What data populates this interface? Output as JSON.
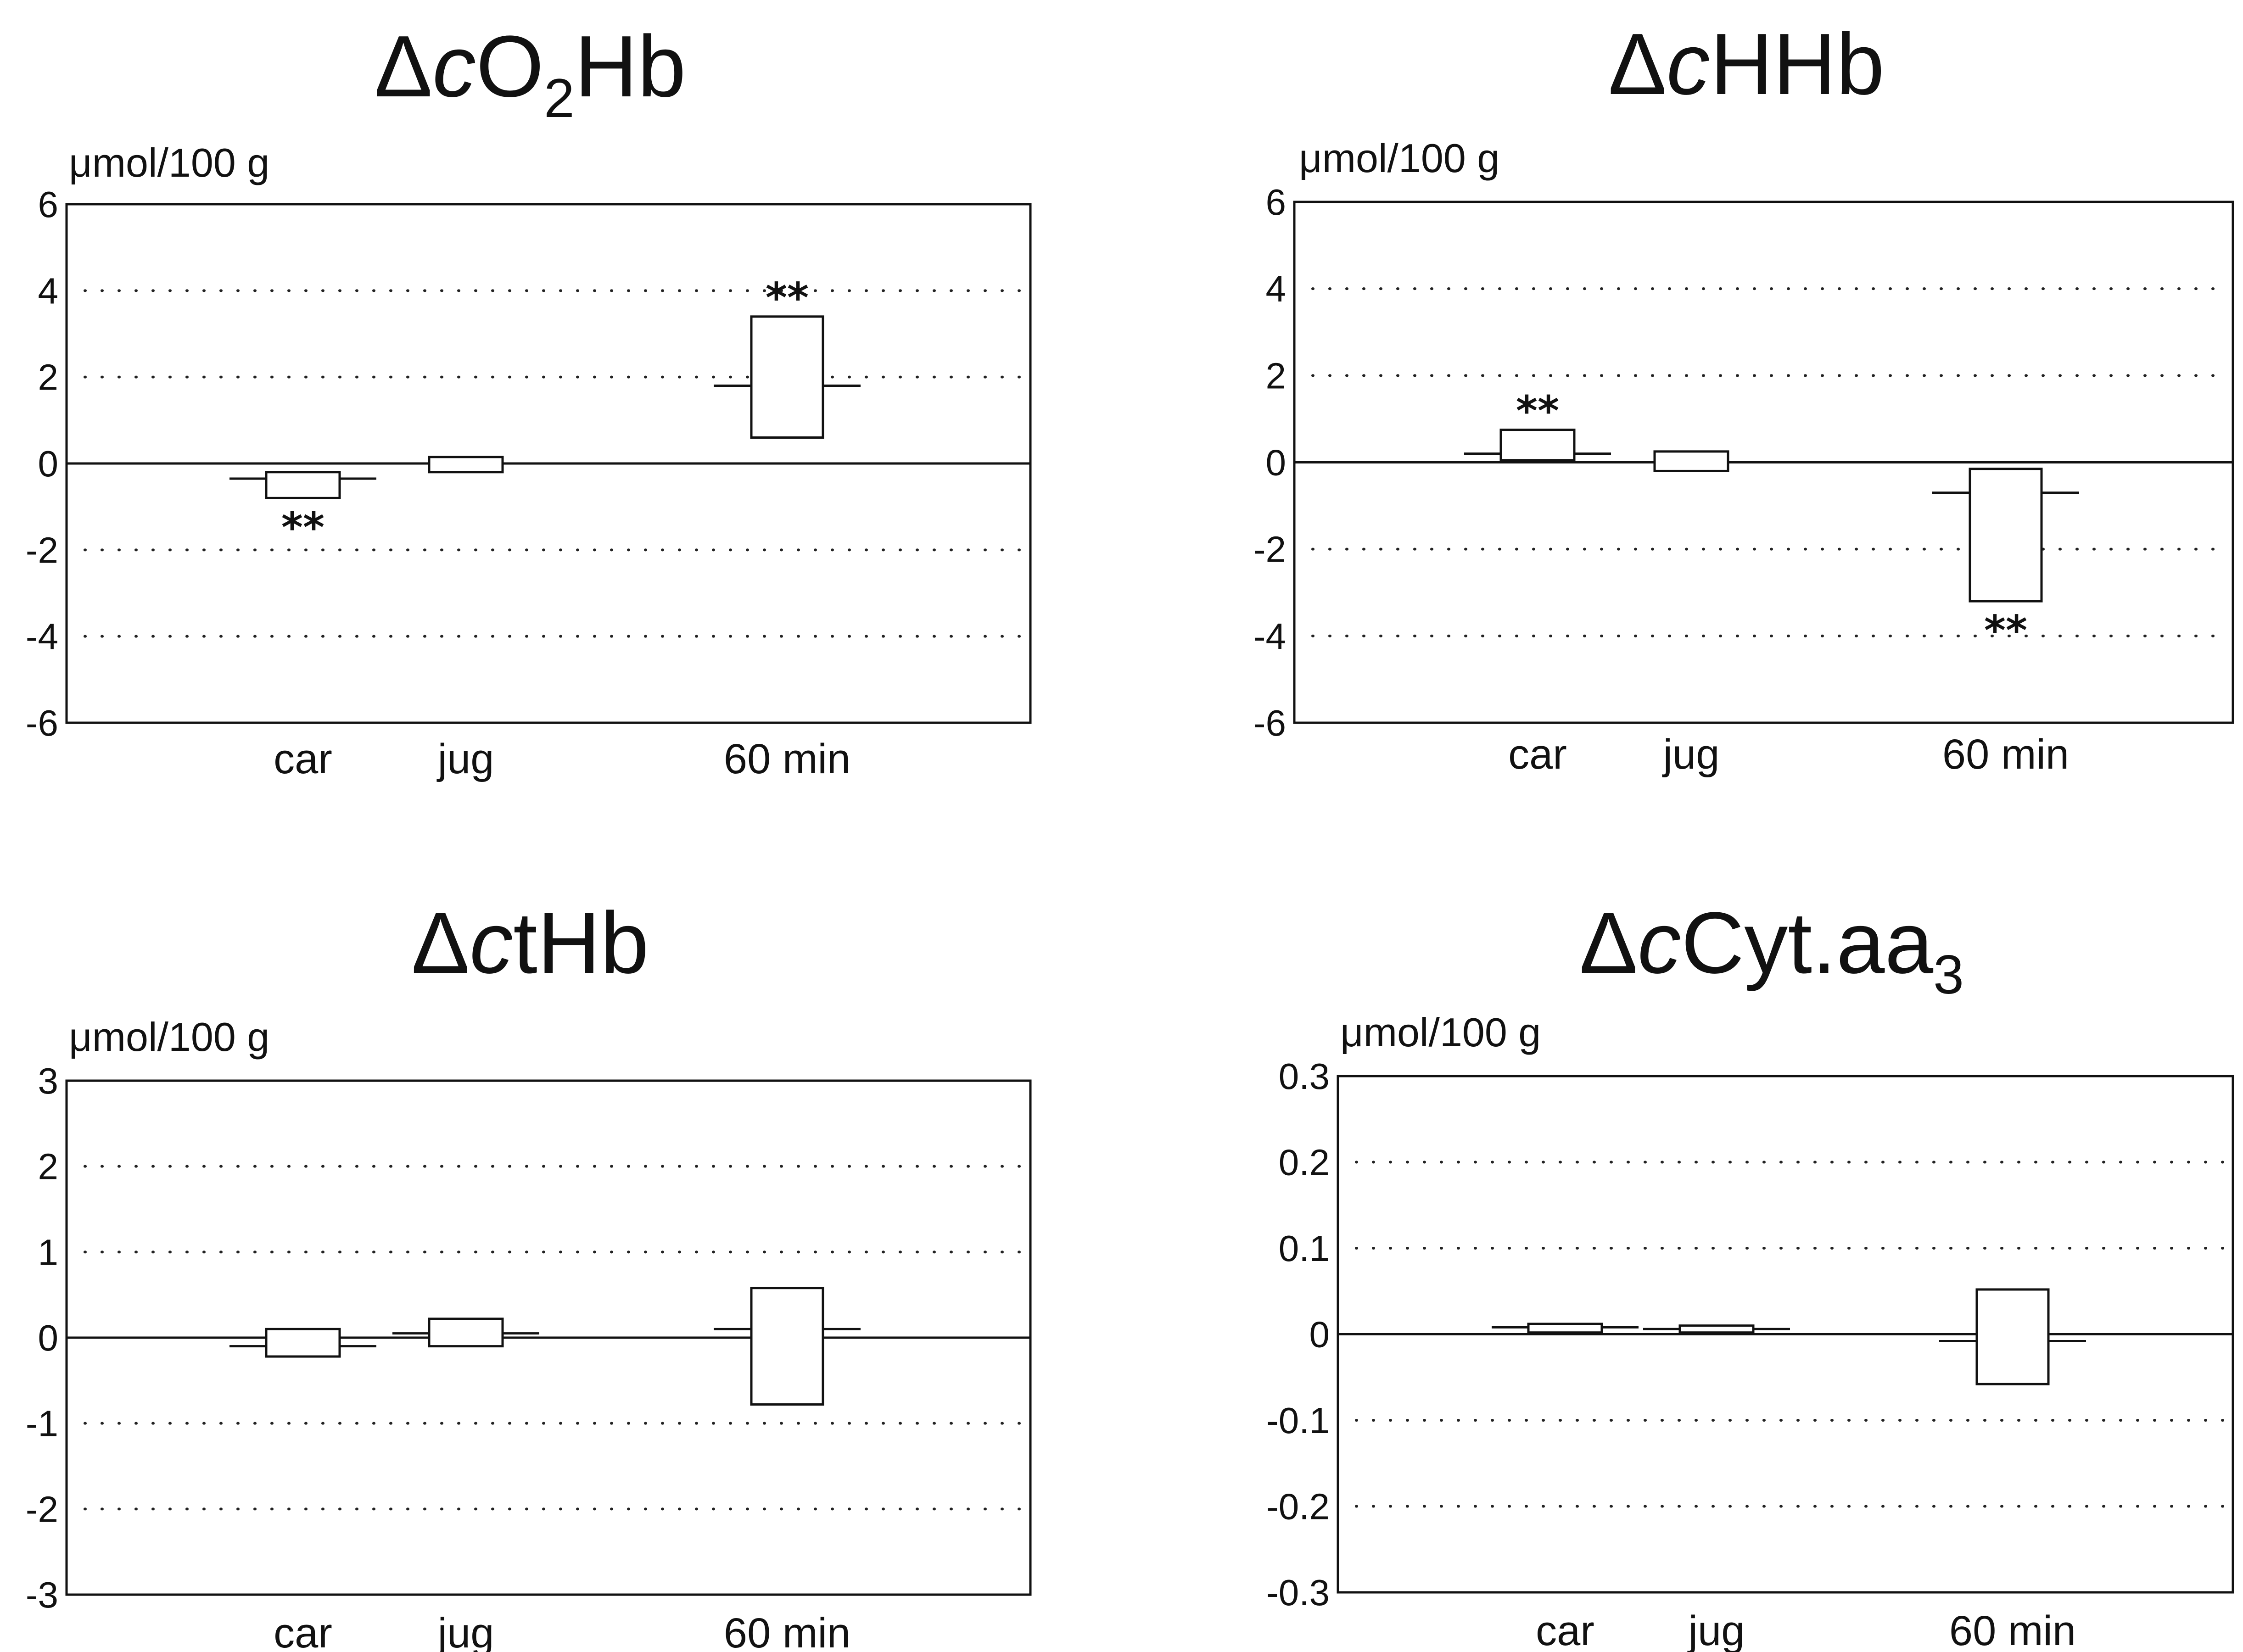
{
  "chart_data": [
    {
      "type": "box",
      "title": {
        "delta": "Δ",
        "var": "c",
        "main": "O",
        "sub": "2",
        "tail": "Hb"
      },
      "ylabel": "μmol/100 g",
      "categories": [
        "car",
        "jug",
        "60 min"
      ],
      "yticks": [
        "6",
        "4",
        "2",
        "0",
        "-2",
        "-4",
        "-6"
      ],
      "ylim": [
        -6,
        6
      ],
      "grid": true,
      "boxes": [
        {
          "category": "car",
          "low": -0.8,
          "high": -0.2,
          "whisker": -0.35,
          "marker": "**",
          "marker_side": "below"
        },
        {
          "category": "jug",
          "low": -0.2,
          "high": 0.15,
          "whisker": 0,
          "marker": "",
          "marker_side": ""
        },
        {
          "category": "60 min",
          "low": 0.6,
          "high": 3.4,
          "whisker": 1.8,
          "marker": "**",
          "marker_side": "above"
        }
      ]
    },
    {
      "type": "box",
      "title": {
        "delta": "Δ",
        "var": "c",
        "main": "HHb",
        "sub": "",
        "tail": ""
      },
      "ylabel": "μmol/100 g",
      "categories": [
        "car",
        "jug",
        "60 min"
      ],
      "yticks": [
        "6",
        "4",
        "2",
        "0",
        "-2",
        "-4",
        "-6"
      ],
      "ylim": [
        -6,
        6
      ],
      "grid": true,
      "boxes": [
        {
          "category": "car",
          "low": 0.05,
          "high": 0.75,
          "whisker": 0.2,
          "marker": "**",
          "marker_side": "above"
        },
        {
          "category": "jug",
          "low": -0.2,
          "high": 0.25,
          "whisker": 0,
          "marker": "",
          "marker_side": ""
        },
        {
          "category": "60 min",
          "low": -3.2,
          "high": -0.15,
          "whisker": -0.7,
          "marker": "**",
          "marker_side": "below"
        }
      ]
    },
    {
      "type": "box",
      "title": {
        "delta": "Δ",
        "var": "c",
        "main": "tHb",
        "sub": "",
        "tail": ""
      },
      "ylabel": "μmol/100 g",
      "categories": [
        "car",
        "jug",
        "60 min"
      ],
      "yticks": [
        "3",
        "2",
        "1",
        "0",
        "-1",
        "-2",
        "-3"
      ],
      "ylim": [
        -3,
        3
      ],
      "grid": true,
      "boxes": [
        {
          "category": "car",
          "low": -0.22,
          "high": 0.1,
          "whisker": -0.1,
          "marker": "",
          "marker_side": ""
        },
        {
          "category": "jug",
          "low": -0.1,
          "high": 0.22,
          "whisker": 0.05,
          "marker": "",
          "marker_side": ""
        },
        {
          "category": "60 min",
          "low": -0.78,
          "high": 0.58,
          "whisker": 0.1,
          "marker": "",
          "marker_side": ""
        }
      ]
    },
    {
      "type": "box",
      "title": {
        "delta": "Δ",
        "var": "c",
        "main": "Cyt.aa",
        "sub": "3",
        "tail": ""
      },
      "ylabel": "μmol/100 g",
      "categories": [
        "car",
        "jug",
        "60 min"
      ],
      "yticks": [
        "0.3",
        "0.2",
        "0.1",
        "0",
        "-0.1",
        "-0.2",
        "-0.3"
      ],
      "ylim": [
        -0.3,
        0.3
      ],
      "grid": true,
      "boxes": [
        {
          "category": "car",
          "low": 0.002,
          "high": 0.012,
          "whisker": 0.008,
          "marker": "",
          "marker_side": ""
        },
        {
          "category": "jug",
          "low": 0.002,
          "high": 0.01,
          "whisker": 0.006,
          "marker": "",
          "marker_side": ""
        },
        {
          "category": "60 min",
          "low": -0.058,
          "high": 0.052,
          "whisker": -0.008,
          "marker": "",
          "marker_side": ""
        }
      ]
    }
  ]
}
